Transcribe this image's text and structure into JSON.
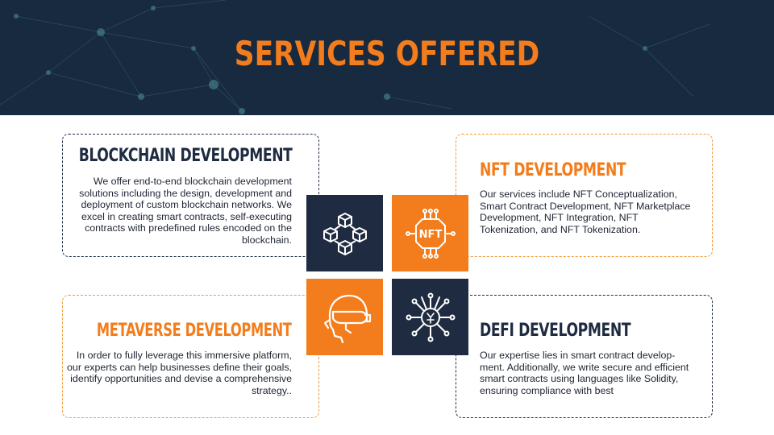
{
  "slide": {
    "title": "SERVICES OFFERED"
  },
  "colors": {
    "accent": "#f37c1c",
    "navy": "#1e2b40",
    "banner": "#182a3f"
  },
  "services": {
    "blockchain": {
      "heading": "BLOCKCHAIN DEVELOPMENT",
      "body": "We offer end-to-end blockchain development solutions  including the design, development and deployment of custom blockchain networks. We excel in creating smart contracts, self-executing contracts with predefined rules encoded on the blockchain.",
      "icon": "blockchain-cubes-icon"
    },
    "nft": {
      "heading": "NFT DEVELOPMENT",
      "body": "Our services include NFT Conceptualization, Smart Contract Development, NFT Marketplace Development, NFT Integration, NFT Tokenization, and NFT Tokenization.",
      "icon": "nft-chip-icon",
      "icon_text": "NFT"
    },
    "metaverse": {
      "heading": "METAVERSE DEVELOPMENT",
      "body": "In order to fully leverage this immersive platform, our experts can help businesses define their goals, identify opportunities and devise a comprehensive strategy..",
      "icon": "vr-headset-icon"
    },
    "defi": {
      "heading": "DEFI DEVELOPMENT",
      "body": "Our expertise lies in smart contract develop-ment. Additionally, we write secure and efficient smart contracts using languages like Solidity, ensuring compliance with best",
      "icon": "defi-network-icon"
    }
  }
}
